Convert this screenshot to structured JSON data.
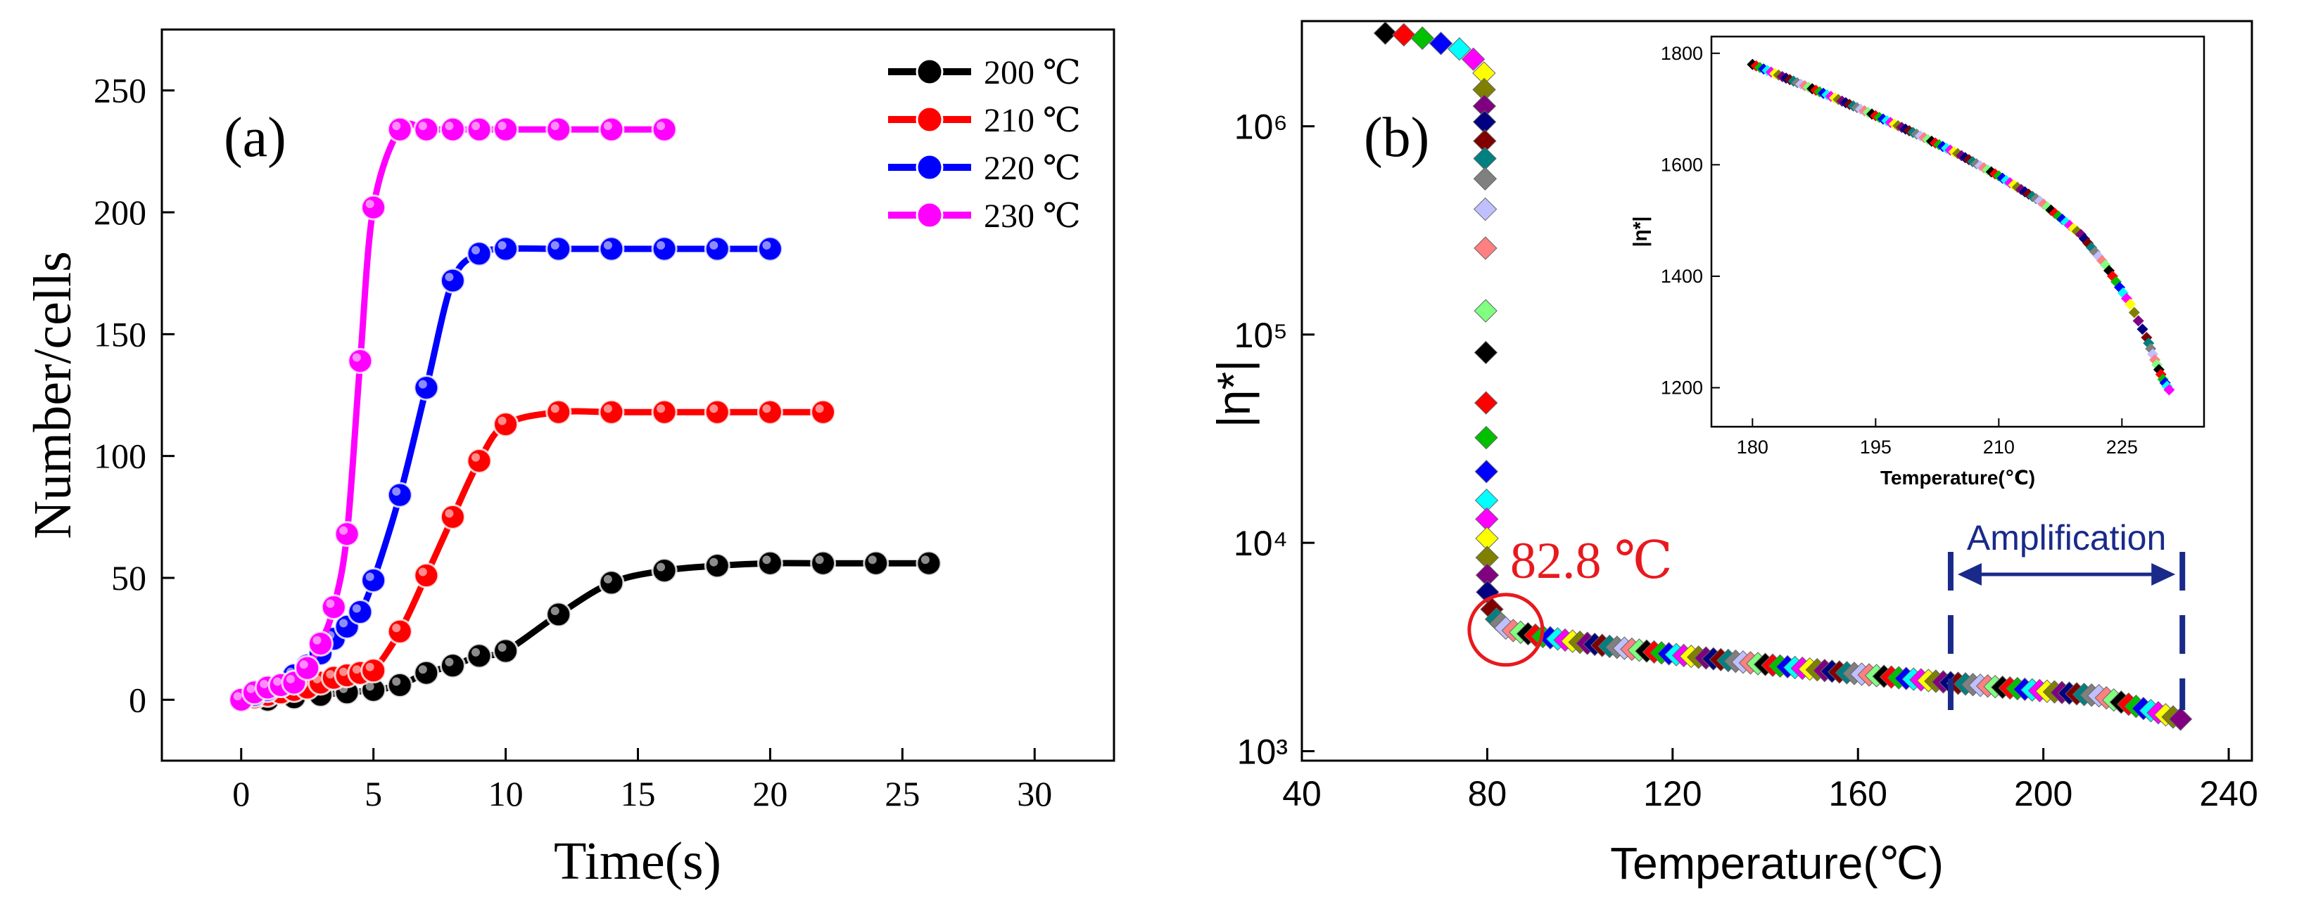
{
  "chart_data": [
    {
      "panel_label": "(a)",
      "type": "line",
      "xlabel": "Time(s)",
      "ylabel": "Number/cells",
      "xlim": [
        -3,
        33
      ],
      "ylim": [
        -25,
        275
      ],
      "xticks": [
        0,
        5,
        10,
        15,
        20,
        25,
        30
      ],
      "yticks": [
        0,
        50,
        100,
        150,
        200,
        250
      ],
      "legend_position": "top-right",
      "series": [
        {
          "name": "200 ℃",
          "color": "#000000",
          "x": [
            0,
            1,
            2,
            3,
            4,
            5,
            6,
            7,
            8,
            9,
            10,
            12,
            14,
            16,
            18,
            20,
            22,
            24,
            26
          ],
          "y": [
            0,
            0,
            1,
            2,
            3,
            4,
            6,
            11,
            14,
            18,
            20,
            35,
            48,
            53,
            55,
            56,
            56,
            56,
            56
          ]
        },
        {
          "name": "210 ℃",
          "color": "#ff0000",
          "x": [
            0,
            0.5,
            1,
            1.5,
            2,
            2.5,
            3,
            3.5,
            4,
            4.5,
            5,
            6,
            7,
            8,
            9,
            10,
            12,
            14,
            16,
            18,
            20,
            22
          ],
          "y": [
            0,
            1,
            2,
            3,
            4,
            5,
            7,
            9,
            10,
            11,
            12,
            28,
            51,
            75,
            98,
            113,
            118,
            118,
            118,
            118,
            118,
            118
          ]
        },
        {
          "name": "220 ℃",
          "color": "#0000ff",
          "x": [
            0,
            0.5,
            1,
            1.5,
            2,
            2.5,
            3,
            3.5,
            4,
            4.5,
            5,
            6,
            7,
            8,
            9,
            10,
            12,
            14,
            16,
            18,
            20
          ],
          "y": [
            0,
            2,
            4,
            6,
            10,
            14,
            19,
            25,
            30,
            36,
            49,
            84,
            128,
            172,
            183,
            185,
            185,
            185,
            185,
            185,
            185
          ]
        },
        {
          "name": "230 ℃",
          "color": "#ff00ff",
          "x": [
            0,
            0.5,
            1,
            1.5,
            2,
            2.5,
            3,
            3.5,
            4,
            4.5,
            5,
            6,
            7,
            8,
            9,
            10,
            12,
            14,
            16
          ],
          "y": [
            0,
            3,
            5,
            6,
            7,
            13,
            23,
            38,
            68,
            139,
            202,
            234,
            234,
            234,
            234,
            234,
            234,
            234,
            234
          ]
        }
      ]
    },
    {
      "panel_label": "(b)",
      "type": "scatter",
      "xlabel": "Temperature(℃)",
      "ylabel": "|η*|",
      "yscale": "log",
      "xlim": [
        40,
        245
      ],
      "ylim": [
        900,
        3200000
      ],
      "xticks": [
        40,
        80,
        120,
        160,
        200,
        240
      ],
      "yticks": [
        1000,
        10000,
        100000,
        1000000
      ],
      "ytick_labels": [
        "10³",
        "10⁴",
        "10⁵",
        "10⁶"
      ],
      "annotation": "82.8 ℃",
      "annotation_point": [
        82.8,
        4200
      ],
      "region_label": "Amplification",
      "region": [
        180,
        230
      ],
      "marker_colors": [
        "#000000",
        "#ff0000",
        "#00c000",
        "#0000ff",
        "#00ffff",
        "#ff00ff",
        "#ffff00",
        "#808000",
        "#800080",
        "#000080",
        "#800000",
        "#008080",
        "#808080",
        "#c0c0ff",
        "#ff8080",
        "#80ff80"
      ],
      "inset": {
        "type": "scatter",
        "xlabel": "Temperature(℃)",
        "ylabel": "|η*|",
        "xlim": [
          175,
          235
        ],
        "ylim": [
          1130,
          1830
        ],
        "xticks": [
          180,
          195,
          210,
          225
        ],
        "yticks": [
          1200,
          1400,
          1600,
          1800
        ],
        "x": [
          180,
          185,
          190,
          195,
          200,
          205,
          210,
          215,
          220,
          223,
          226,
          228,
          229,
          230,
          231
        ],
        "y": [
          1780,
          1750,
          1720,
          1688,
          1655,
          1620,
          1580,
          1535,
          1475,
          1420,
          1350,
          1290,
          1250,
          1215,
          1190
        ]
      }
    }
  ]
}
